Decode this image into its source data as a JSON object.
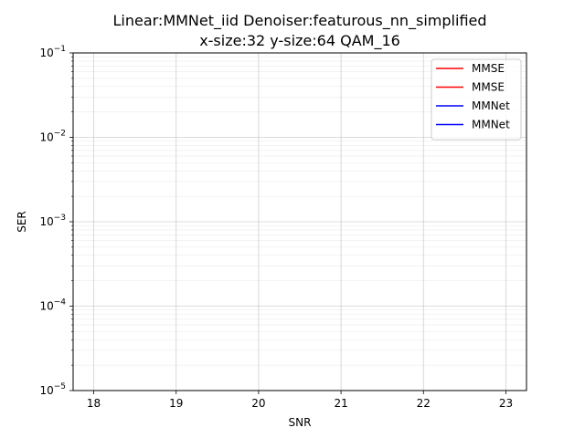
{
  "chart_data": {
    "type": "line",
    "title_line1": "Linear:MMNet_iid Denoiser:featurous_nn_simplified",
    "title_line2": "x-size:32 y-size:64 QAM_16",
    "xlabel": "SNR",
    "ylabel": "SER",
    "x_ticks": [
      18,
      19,
      20,
      21,
      22,
      23
    ],
    "xlim": [
      17.75,
      23.25
    ],
    "y_scale": "log",
    "ylim": [
      1e-05,
      0.1
    ],
    "y_tick_exponents": [
      -5,
      -4,
      -3,
      -2,
      -1
    ],
    "y_tick_base": "10",
    "grid": true,
    "legend_position": "top-right",
    "series": [
      {
        "name": "MMSE",
        "color": "#ff0000",
        "x": [],
        "y": []
      },
      {
        "name": "MMSE",
        "color": "#ff0000",
        "x": [],
        "y": []
      },
      {
        "name": "MMNet",
        "color": "#0000ff",
        "x": [],
        "y": []
      },
      {
        "name": "MMNet",
        "color": "#0000ff",
        "x": [],
        "y": []
      }
    ]
  }
}
